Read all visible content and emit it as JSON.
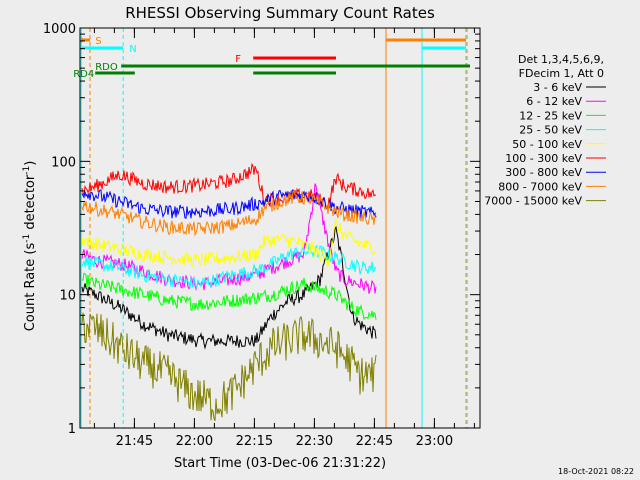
{
  "chart_data": {
    "type": "line",
    "title": "RHESSI Observing Summary Count Rates",
    "xlabel": "Start Time (03-Dec-06 21:31:22)",
    "ylabel_main": "Count Rate (s",
    "ylabel_sup1": "-1",
    "ylabel_mid": " detector",
    "ylabel_sup2": "-1",
    "ylabel_end": ")",
    "y_scale": "log",
    "ylim": [
      1,
      1000
    ],
    "xlim_minutes": [
      0,
      100
    ],
    "x_ticks": [
      {
        "label": "21:45",
        "min": 13.6
      },
      {
        "label": "22:00",
        "min": 28.6
      },
      {
        "label": "22:15",
        "min": 43.6
      },
      {
        "label": "22:30",
        "min": 58.6
      },
      {
        "label": "22:45",
        "min": 73.6
      },
      {
        "label": "23:00",
        "min": 88.6
      }
    ],
    "y_ticks": [
      {
        "label": "1",
        "v": 1
      },
      {
        "label": "10",
        "v": 10
      },
      {
        "label": "100",
        "v": 100
      },
      {
        "label": "1000",
        "v": 1000
      }
    ],
    "legend_header": [
      "Det 1,3,4,5,6,9,",
      "FDecim 1, Att 0"
    ],
    "series": [
      {
        "name": "3 - 6 keV",
        "color": "#000000",
        "x": [
          0.5,
          4,
          10,
          16,
          22,
          30,
          38,
          44,
          48,
          52,
          56,
          60,
          62,
          64,
          66,
          68,
          70,
          74
        ],
        "y": [
          11,
          10,
          8,
          6,
          5,
          4.5,
          4.5,
          4.5,
          7,
          9,
          10,
          13,
          20,
          30,
          15,
          7,
          6,
          5
        ]
      },
      {
        "name": "6 - 12 keV",
        "color": "#ff00ff",
        "x": [
          0.5,
          4,
          10,
          16,
          22,
          30,
          38,
          44,
          48,
          52,
          56,
          58,
          59,
          60,
          62,
          64,
          66,
          70,
          74
        ],
        "y": [
          20,
          18,
          17,
          15,
          13,
          12,
          13,
          14,
          16,
          18,
          20,
          45,
          70,
          45,
          25,
          15,
          13,
          12,
          11
        ]
      },
      {
        "name": "12 - 25 keV",
        "color": "#00ff00",
        "x": [
          0.5,
          4,
          10,
          16,
          22,
          30,
          38,
          44,
          48,
          52,
          56,
          60,
          64,
          68,
          70,
          74
        ],
        "y": [
          13,
          12,
          11,
          10,
          9,
          8.5,
          9,
          9.5,
          10,
          11,
          12,
          11,
          10,
          8,
          7.5,
          7
        ]
      },
      {
        "name": "25 - 50 keV",
        "color": "#00ffff",
        "x": [
          0.5,
          4,
          10,
          16,
          22,
          30,
          38,
          44,
          48,
          52,
          56,
          60,
          64,
          68,
          70,
          74
        ],
        "y": [
          18,
          17,
          16,
          14,
          13,
          12,
          14,
          15,
          17,
          20,
          21,
          21,
          19,
          17,
          16,
          16
        ]
      },
      {
        "name": "50 - 100 keV",
        "color": "#ffff00",
        "x": [
          0.5,
          4,
          10,
          16,
          22,
          30,
          38,
          44,
          46,
          50,
          54,
          58,
          62,
          64,
          66,
          70,
          74
        ],
        "y": [
          26,
          24,
          22,
          20,
          19,
          18,
          19,
          20,
          25,
          26,
          25,
          22,
          18,
          34,
          28,
          24,
          22
        ]
      },
      {
        "name": "100 - 300 keV",
        "color": "#ff0000",
        "x": [
          0.5,
          4,
          10,
          16,
          22,
          30,
          38,
          44,
          46,
          50,
          54,
          58,
          62,
          64,
          66,
          70,
          74
        ],
        "y": [
          60,
          65,
          80,
          68,
          64,
          66,
          72,
          88,
          52,
          52,
          55,
          55,
          48,
          75,
          65,
          60,
          55
        ]
      },
      {
        "name": "300 - 800 keV",
        "color": "#0000ff",
        "x": [
          0.5,
          4,
          10,
          16,
          22,
          30,
          38,
          44,
          46,
          50,
          54,
          58,
          62,
          64,
          66,
          70,
          74
        ],
        "y": [
          60,
          56,
          50,
          44,
          42,
          42,
          44,
          48,
          50,
          55,
          56,
          55,
          48,
          45,
          44,
          42,
          40
        ]
      },
      {
        "name": "800 - 7000 keV",
        "color": "#ff8000",
        "x": [
          0.5,
          4,
          10,
          16,
          22,
          30,
          38,
          44,
          46,
          50,
          54,
          58,
          62,
          64,
          66,
          70,
          74
        ],
        "y": [
          48,
          44,
          40,
          35,
          32,
          31,
          33,
          37,
          44,
          50,
          54,
          52,
          45,
          42,
          40,
          38,
          36
        ]
      },
      {
        "name": "7000 - 15000 keV",
        "color": "#808000",
        "x": [
          0.5,
          4,
          10,
          16,
          22,
          28,
          34,
          38,
          42,
          44,
          48,
          52,
          56,
          60,
          64,
          68,
          70,
          74
        ],
        "y": [
          6,
          5.5,
          4,
          3,
          2.5,
          1.8,
          1.5,
          1.8,
          2.5,
          3,
          4,
          4.5,
          5,
          4.5,
          4,
          3,
          2.5,
          2.5
        ]
      }
    ],
    "flags": [
      {
        "label": "S",
        "color": "#ff8000",
        "level": 1,
        "start": 0.3,
        "end": 2.5
      },
      {
        "label": "N",
        "color": "#00ffff",
        "level": 2,
        "start": 0.3,
        "end": 10.8
      },
      {
        "label": "F",
        "color": "#ff0000",
        "level": 3,
        "start": 43.3,
        "end": 64.0
      },
      {
        "label": "RDO",
        "color": "#008000",
        "level": 4,
        "start": 0.3,
        "end": 97.5
      },
      {
        "label": "RD4",
        "color": "#008000",
        "level": 5,
        "start": 3.8,
        "end": 13.7
      }
    ],
    "rd4_segments": [
      [
        3.8,
        13.7
      ],
      [
        43.3,
        64.0
      ]
    ],
    "right_flags": [
      {
        "color": "#ff8000",
        "level": 1,
        "start": 76.5,
        "end": 96.5
      },
      {
        "color": "#00ffff",
        "level": 2,
        "start": 85.5,
        "end": 96.5
      }
    ],
    "vlines": [
      {
        "min": 0.3,
        "color": "#00ffff",
        "dashed": false
      },
      {
        "min": 2.5,
        "color": "#ff8000",
        "dashed": true
      },
      {
        "min": 10.8,
        "color": "#00ffff",
        "dashed": true
      },
      {
        "min": 76.5,
        "color": "#ff8000",
        "dashed": false
      },
      {
        "min": 85.5,
        "color": "#00ffff",
        "dashed": false
      },
      {
        "min": 96.5,
        "color": "#ff8000",
        "dashed": true
      },
      {
        "min": 96.8,
        "color": "#00ffff",
        "dashed": true
      }
    ],
    "footer_date": "18-Oct-2021 08:22"
  }
}
